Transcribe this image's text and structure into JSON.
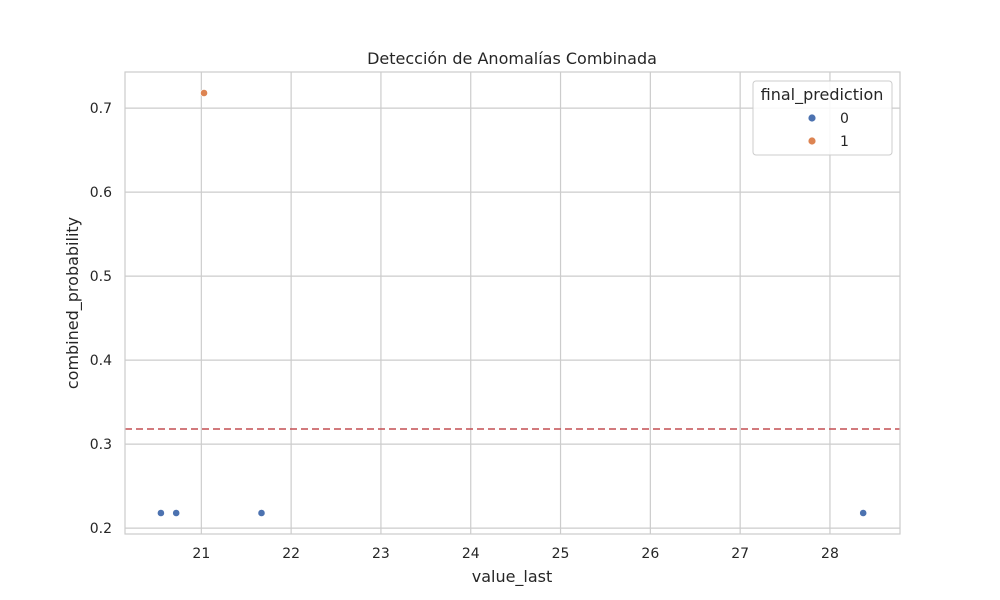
{
  "chart_data": {
    "type": "scatter",
    "title": "Detección de Anomalías Combinada",
    "xlabel": "value_last",
    "ylabel": "combined_probability",
    "xlim": [
      20.15,
      28.78
    ],
    "ylim": [
      0.193,
      0.743
    ],
    "xticks": [
      "21",
      "22",
      "23",
      "24",
      "25",
      "26",
      "27",
      "28"
    ],
    "yticks": [
      "0.2",
      "0.3",
      "0.4",
      "0.5",
      "0.6",
      "0.7"
    ],
    "grid": true,
    "legend": {
      "title": "final_prediction",
      "placement": "top-right"
    },
    "threshold": {
      "y": 0.318,
      "style": "dashed",
      "color": "#c44e52"
    },
    "colors": {
      "0": "#4c72b0",
      "1": "#dd8452"
    },
    "series": [
      {
        "name": "0",
        "x": [
          20.55,
          20.72,
          21.67,
          28.37
        ],
        "y": [
          0.218,
          0.218,
          0.218,
          0.218
        ]
      },
      {
        "name": "1",
        "x": [
          21.03
        ],
        "y": [
          0.718
        ]
      }
    ]
  }
}
